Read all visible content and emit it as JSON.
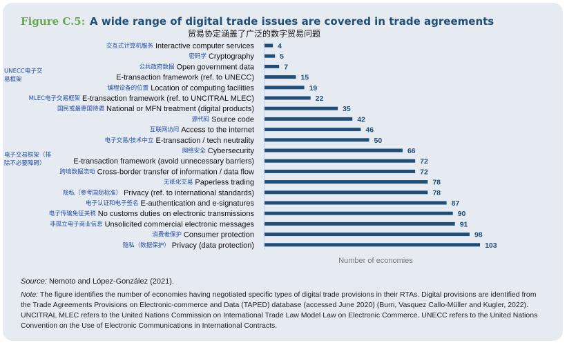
{
  "figure": {
    "label": "Figure C.5:",
    "title": "A wide range of digital trade issues are covered in trade agreements",
    "subtitle": "贸易协定涵盖了广泛的数字贸易问题"
  },
  "chart_data": {
    "type": "bar",
    "orientation": "horizontal",
    "xlabel": "Number of economies",
    "xlim": [
      0,
      110
    ],
    "bar_color": "#1f4e79",
    "categories": [
      {
        "en": "Interactive computer services",
        "zh": "交互式计算机服务",
        "value": 4
      },
      {
        "en": "Cryptography",
        "zh": "密码学",
        "value": 5
      },
      {
        "en": "Open government data",
        "zh": "公共政府数据",
        "value": 7
      },
      {
        "en": "E-transaction framework (ref. to UNECC)",
        "zh": "UNECC电子交易框架",
        "value": 15
      },
      {
        "en": "Location of computing facilities",
        "zh": "编程设备的位置",
        "value": 19
      },
      {
        "en": "E-transaction framework (ref. to UNCITRAL MLEC)",
        "zh": "MLEC电子交易框架",
        "value": 22
      },
      {
        "en": "National or MFN treatment (digital products)",
        "zh": "国民或最惠国待遇",
        "value": 35
      },
      {
        "en": "Source code",
        "zh": "源代码",
        "value": 42
      },
      {
        "en": "Access to the internet",
        "zh": "互联网访问",
        "value": 46
      },
      {
        "en": "E-transaction / tech neutrality",
        "zh": "电子交易/技术中立",
        "value": 50
      },
      {
        "en": "Cybersecurity",
        "zh": "网络安全",
        "value": 66
      },
      {
        "en": "E-transaction framework (avoid unnecessary barriers)",
        "zh": "电子交易框架（排除不必要障碍）",
        "value": 72
      },
      {
        "en": "Cross-border transfer of information / data flow",
        "zh": "跨境数据流动",
        "value": 72
      },
      {
        "en": "Paperless trading",
        "zh": "无纸化交易",
        "value": 78
      },
      {
        "en": "Privacy (ref. to international standards)",
        "zh": "隐私（参考国际标准）",
        "value": 78
      },
      {
        "en": "E-authentication and e-signatures",
        "zh": "电子认证和电子签名",
        "value": 87
      },
      {
        "en": "No customs duties on electronic transmissions",
        "zh": "电子传输免征关税",
        "value": 90
      },
      {
        "en": "Unsolicited commercial electronic messages",
        "zh": "非孤立电子商业信息",
        "value": 91
      },
      {
        "en": "Consumer protection",
        "zh": "消费者保护",
        "value": 98
      },
      {
        "en": "Privacy (data protection)",
        "zh": "隐私（数据保护）",
        "value": 103
      }
    ]
  },
  "source": {
    "label": "Source:",
    "text": "Nemoto and López-González (2021)."
  },
  "note": {
    "label": "Note:",
    "text": "The figure identifies the number of economies having negotiated specific types of digital trade provisions in their RTAs. Digital provisions are identified from the Trade Agreements Provisions on Electronic-commerce and Data (TAPED) database (accessed June 2020) (Burri, Vasquez Callo-Müller and Kugler, 2022). UNCITRAL MLEC refers to the United Nations Commission on International Trade Law Model Law on Electronic Commerce. UNECC refers to the United Nations Convention on the Use of Electronic Communications in International Contracts."
  }
}
